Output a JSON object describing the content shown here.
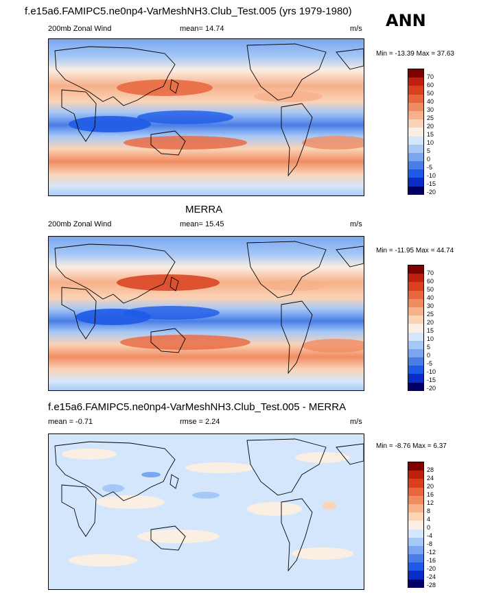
{
  "season": "ANN",
  "colors": {
    "wind": [
      "#020066",
      "#0a2dc8",
      "#1e5ae6",
      "#4a7ee6",
      "#7aa6f0",
      "#a6c8f6",
      "#d4e6fb",
      "#fbeee2",
      "#fbd3b6",
      "#f6b08a",
      "#f08c62",
      "#e8663e",
      "#d8401e",
      "#c02010",
      "#800000"
    ],
    "diff": [
      "#020066",
      "#0a2dc8",
      "#1e5ae6",
      "#4a7ee6",
      "#7aa6f0",
      "#a6c8f6",
      "#d4e6fb",
      "#fbeee2",
      "#fbd3b6",
      "#f6b08a",
      "#f08c62",
      "#e8663e",
      "#d8401e",
      "#c02010",
      "#800000"
    ]
  },
  "panels": [
    {
      "title": "f.e15a6.FAMIPC5.ne0np4-VarMeshNH3.Club_Test.005 (yrs 1979-1980)",
      "left_label": "200mb Zonal Wind",
      "mid_label": "mean=  14.74",
      "units": "m/s",
      "minmax": "Min = -13.39 Max =  37.63",
      "levels": [
        "70",
        "60",
        "50",
        "40",
        "30",
        "25",
        "20",
        "15",
        "10",
        "5",
        "0",
        "-5",
        "-10",
        "-15",
        "-20"
      ]
    },
    {
      "title": "MERRA",
      "left_label": "200mb Zonal Wind",
      "mid_label": "mean=  15.45",
      "units": "m/s",
      "minmax": "Min = -11.95 Max =  44.74",
      "levels": [
        "70",
        "60",
        "50",
        "40",
        "30",
        "25",
        "20",
        "15",
        "10",
        "5",
        "0",
        "-5",
        "-10",
        "-15",
        "-20"
      ]
    },
    {
      "title": "f.e15a6.FAMIPC5.ne0np4-VarMeshNH3.Club_Test.005 - MERRA",
      "left_label": "mean =  -0.71",
      "mid_label": "rmse =   2.24",
      "units": "m/s",
      "minmax": "Min =  -8.76 Max =   6.37",
      "levels": [
        "28",
        "24",
        "20",
        "16",
        "12",
        "8",
        "4",
        "0",
        "-4",
        "-8",
        "-12",
        "-16",
        "-20",
        "-24",
        "-28"
      ]
    }
  ]
}
